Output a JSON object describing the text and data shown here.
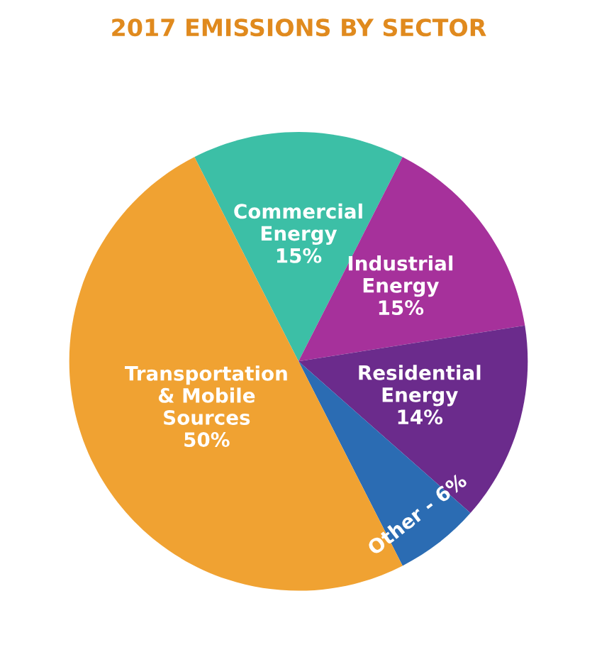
{
  "chart_data": {
    "type": "pie",
    "title": "2017 EMISSIONS BY SECTOR",
    "categories": [
      "Commercial\nEnergy",
      "Industrial\nEnergy",
      "Residential\nEnergy",
      "Other - 6%",
      "Transportation\n& Mobile\nSources"
    ],
    "values": [
      15,
      15,
      14,
      6,
      50
    ],
    "value_labels": [
      "15%",
      "15%",
      "14%",
      null,
      "50%"
    ],
    "colors": [
      "#3cbfa6",
      "#a6319b",
      "#6b2b8c",
      "#2b6cb3",
      "#f0a232"
    ],
    "legend": false
  }
}
